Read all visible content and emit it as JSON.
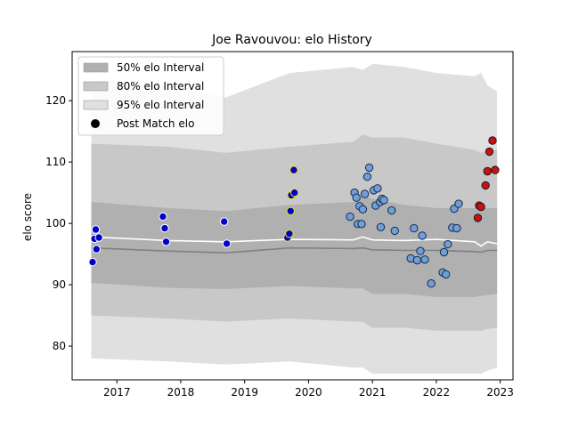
{
  "chart_data": {
    "type": "scatter",
    "title": "Joe Ravouvou: elo History",
    "xlabel": "",
    "ylabel": "elo score",
    "xlim": [
      2016.3,
      2023.2
    ],
    "ylim": [
      74.5,
      128
    ],
    "x_ticks": [
      2017,
      2018,
      2019,
      2020,
      2021,
      2022,
      2023
    ],
    "y_ticks": [
      80,
      90,
      100,
      110,
      120
    ],
    "grid": false,
    "legend_position": "top-left",
    "legend": [
      {
        "label": "50% elo Interval",
        "color": "#b0b0b0"
      },
      {
        "label": "80% elo Interval",
        "color": "#c8c8c8"
      },
      {
        "label": "95% elo Interval",
        "color": "#e0e0e0"
      },
      {
        "label": "Post Match elo",
        "color": "#000000"
      }
    ],
    "intervals": {
      "x": [
        2016.6,
        2017.8,
        2018.7,
        2019.7,
        2020.7,
        2020.85,
        2021.0,
        2021.5,
        2022.0,
        2022.6,
        2022.7,
        2022.8,
        2022.95
      ],
      "mean": [
        97.8,
        97.2,
        97.0,
        97.4,
        97.3,
        97.8,
        97.3,
        97.2,
        97.4,
        97.0,
        96.3,
        97.0,
        96.7
      ],
      "median": [
        96.0,
        95.5,
        95.2,
        96.0,
        95.9,
        96.0,
        95.7,
        95.6,
        95.6,
        95.4,
        95.3,
        95.6,
        95.6
      ],
      "p50": [
        [
          90.3,
          103.5
        ],
        [
          89.5,
          102.5
        ],
        [
          89.3,
          102.0
        ],
        [
          89.8,
          103.0
        ],
        [
          89.4,
          103.5
        ],
        [
          89.4,
          104.5
        ],
        [
          88.5,
          104.0
        ],
        [
          88.5,
          103.0
        ],
        [
          88.0,
          102.5
        ],
        [
          88.0,
          102.5
        ],
        [
          88.2,
          102.3
        ],
        [
          88.3,
          102.5
        ],
        [
          88.5,
          102.5
        ]
      ],
      "p80": [
        [
          85.0,
          113.0
        ],
        [
          84.5,
          112.5
        ],
        [
          84.0,
          111.5
        ],
        [
          84.5,
          112.5
        ],
        [
          84.0,
          113.3
        ],
        [
          84.0,
          114.5
        ],
        [
          83.0,
          114.0
        ],
        [
          83.0,
          114.0
        ],
        [
          82.5,
          113.0
        ],
        [
          82.5,
          112.0
        ],
        [
          82.5,
          111.5
        ],
        [
          82.8,
          111.8
        ],
        [
          83.0,
          112.0
        ]
      ],
      "p95": [
        [
          78.0,
          123.5
        ],
        [
          77.5,
          122.5
        ],
        [
          77.0,
          120.5
        ],
        [
          77.5,
          124.5
        ],
        [
          76.5,
          125.5
        ],
        [
          76.5,
          125.0
        ],
        [
          75.5,
          126.0
        ],
        [
          75.5,
          125.5
        ],
        [
          75.5,
          124.5
        ],
        [
          75.5,
          124.0
        ],
        [
          75.5,
          124.5
        ],
        [
          76.0,
          122.5
        ],
        [
          76.5,
          121.5
        ]
      ]
    },
    "series": [
      {
        "marker_color": "#0000cc",
        "edge_color": "#ffffff",
        "points": [
          [
            2016.62,
            93.7
          ],
          [
            2016.65,
            97.5
          ],
          [
            2016.67,
            99.0
          ],
          [
            2016.68,
            95.8
          ],
          [
            2016.72,
            97.7
          ],
          [
            2017.72,
            101.1
          ],
          [
            2017.75,
            99.2
          ],
          [
            2017.77,
            97.0
          ],
          [
            2018.68,
            100.3
          ],
          [
            2018.72,
            96.7
          ]
        ]
      },
      {
        "marker_color": "#0000cc",
        "edge_color": "#e8e800",
        "points": [
          [
            2019.67,
            97.7
          ],
          [
            2019.7,
            98.3
          ],
          [
            2019.72,
            102.0
          ],
          [
            2019.73,
            104.6
          ],
          [
            2019.77,
            108.7
          ],
          [
            2019.78,
            105.0
          ]
        ]
      },
      {
        "marker_color": "#6f9ed8",
        "edge_color": "#1a2a4a",
        "points": [
          [
            2020.65,
            101.1
          ],
          [
            2020.72,
            105.0
          ],
          [
            2020.75,
            104.2
          ],
          [
            2020.77,
            99.9
          ],
          [
            2020.8,
            102.8
          ],
          [
            2020.83,
            99.9
          ],
          [
            2020.85,
            102.3
          ],
          [
            2020.88,
            104.8
          ],
          [
            2020.92,
            107.6
          ],
          [
            2020.95,
            109.1
          ],
          [
            2021.02,
            105.4
          ],
          [
            2021.05,
            102.9
          ],
          [
            2021.08,
            105.7
          ],
          [
            2021.12,
            103.5
          ],
          [
            2021.13,
            99.4
          ],
          [
            2021.15,
            104.0
          ],
          [
            2021.18,
            103.8
          ],
          [
            2021.3,
            102.1
          ],
          [
            2021.35,
            98.8
          ],
          [
            2021.6,
            94.3
          ],
          [
            2021.65,
            99.2
          ],
          [
            2021.7,
            94.0
          ],
          [
            2021.75,
            95.5
          ],
          [
            2021.78,
            98.0
          ],
          [
            2021.82,
            94.1
          ],
          [
            2021.92,
            90.2
          ],
          [
            2022.1,
            92.0
          ],
          [
            2022.12,
            95.3
          ],
          [
            2022.15,
            91.7
          ],
          [
            2022.18,
            96.6
          ],
          [
            2022.25,
            99.3
          ],
          [
            2022.28,
            102.4
          ],
          [
            2022.32,
            99.2
          ],
          [
            2022.35,
            103.2
          ]
        ]
      },
      {
        "marker_color": "#cc1111",
        "edge_color": "#1a1a1a",
        "points": [
          [
            2022.65,
            100.9
          ],
          [
            2022.67,
            102.9
          ],
          [
            2022.7,
            102.7
          ],
          [
            2022.77,
            106.2
          ],
          [
            2022.8,
            108.5
          ],
          [
            2022.83,
            111.7
          ],
          [
            2022.88,
            113.5
          ],
          [
            2022.92,
            108.7
          ]
        ]
      }
    ]
  }
}
